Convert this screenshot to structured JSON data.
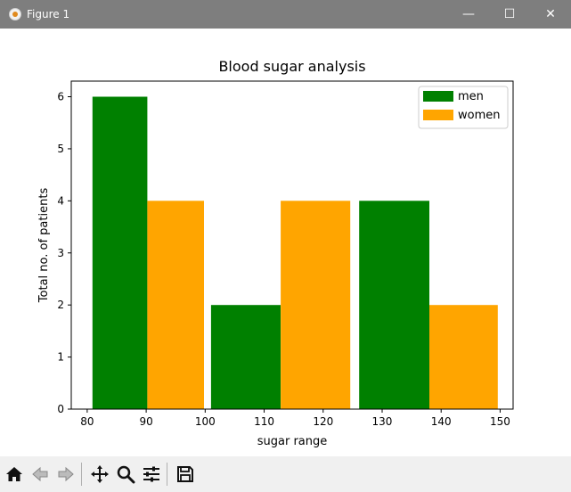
{
  "window": {
    "title": "Figure 1",
    "controls": {
      "minimize": "—",
      "maximize": "☐",
      "close": "✕"
    },
    "app_icon": "matplotlib-icon"
  },
  "toolbar": {
    "buttons": [
      "home-icon",
      "back-icon",
      "forward-icon",
      "pan-icon",
      "zoom-icon",
      "configure-subplots-icon",
      "save-icon"
    ]
  },
  "chart_data": {
    "type": "bar",
    "title": "Blood sugar analysis",
    "xlabel": "sugar range",
    "ylabel": "Total no. of patients",
    "xlim": [
      77.3,
      152.2
    ],
    "ylim": [
      0,
      6.3
    ],
    "xticks": [
      80,
      90,
      100,
      110,
      120,
      130,
      140,
      150
    ],
    "yticks": [
      0,
      1,
      2,
      3,
      4,
      5,
      6
    ],
    "legend_position": "top-right",
    "series": [
      {
        "name": "men",
        "color": "#008000",
        "bars": [
          {
            "x0": 80.9,
            "x1": 90.2,
            "value": 6
          },
          {
            "x0": 101.0,
            "x1": 112.8,
            "value": 2
          },
          {
            "x0": 126.1,
            "x1": 138.0,
            "value": 4
          }
        ]
      },
      {
        "name": "women",
        "color": "#ffa500",
        "bars": [
          {
            "x0": 90.2,
            "x1": 99.8,
            "value": 4
          },
          {
            "x0": 112.8,
            "x1": 124.6,
            "value": 4
          },
          {
            "x0": 138.0,
            "x1": 149.6,
            "value": 2
          }
        ]
      }
    ]
  }
}
